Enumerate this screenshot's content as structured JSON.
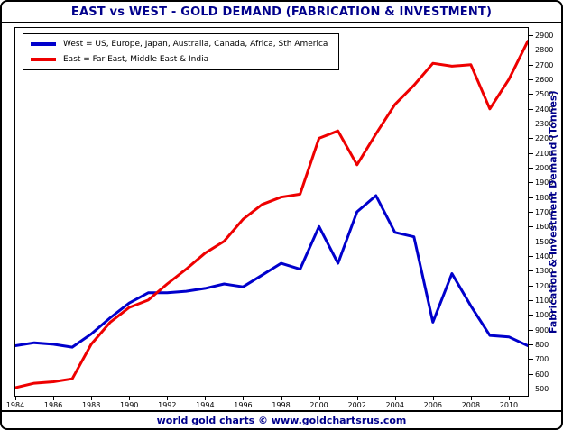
{
  "header": {
    "title": "EAST vs WEST - GOLD DEMAND (FABRICATION & INVESTMENT)"
  },
  "legend": {
    "west": "West = US, Europe, Japan, Australia, Canada, Africa, Sth America",
    "east": "East = Far East, Middle East & India"
  },
  "axis": {
    "right_label": "Fabrication & Investment Demand (Tonnes)"
  },
  "footer": {
    "credit": "world gold charts © www.goldchartsrus.com"
  },
  "colors": {
    "title": "#00008b",
    "west_line": "#0000cc",
    "east_line": "#ee0000",
    "axis_title": "#00008b",
    "footer_text": "#00008b"
  },
  "chart_data": {
    "type": "line",
    "title": "EAST vs WEST - GOLD DEMAND (FABRICATION & INVESTMENT)",
    "xlabel": "",
    "ylabel": "Fabrication & Investment Demand (Tonnes)",
    "xlim": [
      1984,
      2011
    ],
    "ylim": [
      450,
      2950
    ],
    "grid": false,
    "legend_position": "top-left",
    "x": [
      1984,
      1985,
      1986,
      1987,
      1988,
      1989,
      1990,
      1991,
      1992,
      1993,
      1994,
      1995,
      1996,
      1997,
      1998,
      1999,
      2000,
      2001,
      2002,
      2003,
      2004,
      2005,
      2006,
      2007,
      2008,
      2009,
      2010,
      2011
    ],
    "xticks": [
      1984,
      1986,
      1988,
      1990,
      1992,
      1994,
      1996,
      1998,
      2000,
      2002,
      2004,
      2006,
      2008,
      2010
    ],
    "yticks": [
      500,
      600,
      700,
      800,
      900,
      1000,
      1100,
      1200,
      1300,
      1400,
      1500,
      1600,
      1700,
      1800,
      1900,
      2000,
      2100,
      2200,
      2300,
      2400,
      2500,
      2600,
      2700,
      2800,
      2900
    ],
    "series": [
      {
        "name": "West",
        "color": "#0000cc",
        "values": [
          790,
          810,
          800,
          780,
          870,
          980,
          1080,
          1150,
          1150,
          1160,
          1180,
          1210,
          1190,
          1270,
          1350,
          1310,
          1600,
          1350,
          1700,
          1810,
          1560,
          1530,
          950,
          1280,
          1060,
          860,
          850,
          790
        ]
      },
      {
        "name": "East",
        "color": "#ee0000",
        "values": [
          505,
          535,
          545,
          565,
          800,
          950,
          1050,
          1100,
          1210,
          1310,
          1420,
          1500,
          1650,
          1750,
          1800,
          1820,
          2200,
          2250,
          2020,
          2230,
          2430,
          2560,
          2710,
          2690,
          2700,
          2400,
          2600,
          2860
        ]
      }
    ]
  }
}
